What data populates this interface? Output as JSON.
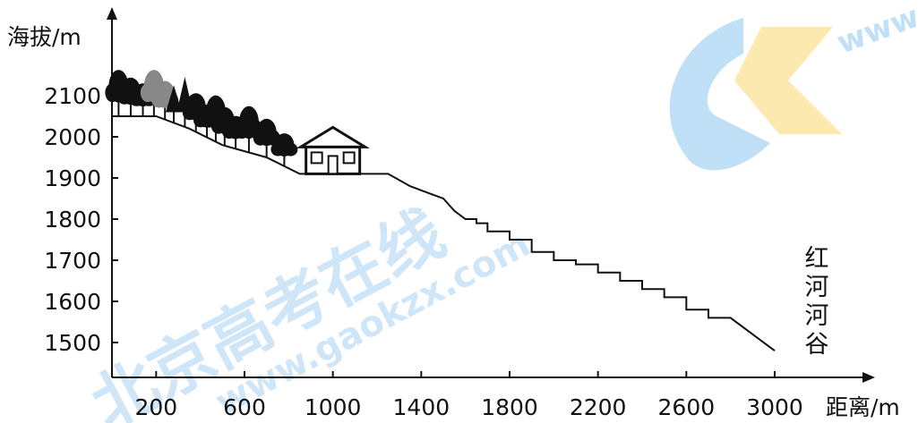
{
  "chart_data": {
    "type": "line",
    "ylabel": "海拔/m",
    "xlabel": "距离/m",
    "x_ticks": [
      200,
      600,
      1000,
      1400,
      1800,
      2200,
      2600,
      3000
    ],
    "y_ticks": [
      1500,
      1600,
      1700,
      1800,
      1900,
      2000,
      2100
    ],
    "xlim": [
      0,
      3200
    ],
    "ylim": [
      1440,
      2260
    ],
    "annotation": "红河河谷",
    "series": [
      {
        "values_x": [
          0,
          200,
          350,
          500,
          700,
          850,
          1000,
          1250,
          1350,
          1450,
          1500,
          1550,
          1600,
          1650,
          1700,
          1800,
          1900,
          2000,
          2100,
          2200,
          2300,
          2400,
          2500,
          2600,
          2700,
          2800,
          2900,
          3000
        ],
        "values_y": [
          2050,
          2050,
          2020,
          1980,
          1950,
          1910,
          1910,
          1910,
          1880,
          1860,
          1850,
          1820,
          1800,
          1790,
          1770,
          1750,
          1720,
          1700,
          1690,
          1670,
          1650,
          1630,
          1610,
          1580,
          1560,
          1560,
          1520,
          1480
        ]
      }
    ]
  },
  "watermark": {
    "main": "北京高考在线",
    "url": "www.gaokzx.com",
    "corner": "www"
  },
  "colors": {
    "watermark_blue": "#4a9ee0",
    "watermark_orange": "#f5c842",
    "line": "#111111"
  }
}
